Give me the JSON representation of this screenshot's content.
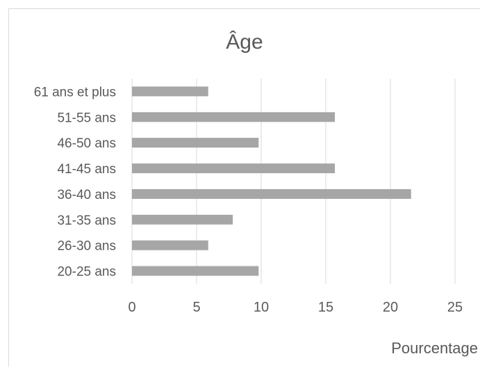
{
  "chart_data": {
    "type": "bar",
    "orientation": "horizontal",
    "title": "Âge",
    "xlabel": "Pourcentage",
    "ylabel": "",
    "categories": [
      "20-25 ans",
      "26-30 ans",
      "31-35 ans",
      "36-40 ans",
      "41-45 ans",
      "46-50 ans",
      "51-55 ans",
      "61 ans et plus"
    ],
    "values": [
      9.8,
      5.9,
      7.8,
      21.6,
      15.7,
      9.8,
      15.7,
      5.9
    ],
    "xlim": [
      0,
      25
    ],
    "xticks": [
      0,
      5,
      10,
      15,
      20,
      25
    ],
    "grid": "vertical",
    "legend": "none",
    "colors": {
      "bar": "#a6a6a6",
      "grid": "#d9d9d9",
      "text": "#595959",
      "border": "#d9d9d9"
    }
  }
}
